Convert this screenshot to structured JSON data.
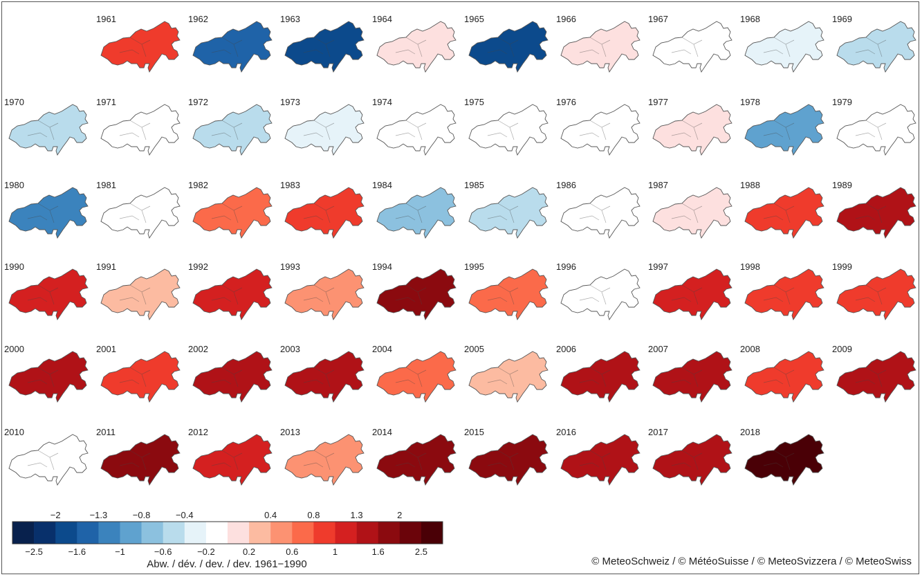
{
  "years": [
    {
      "year": "1961",
      "dev": 1.0
    },
    {
      "year": "1962",
      "dev": -1.6
    },
    {
      "year": "1963",
      "dev": -2.0
    },
    {
      "year": "1964",
      "dev": 0.3
    },
    {
      "year": "1965",
      "dev": -1.7
    },
    {
      "year": "1966",
      "dev": 0.2
    },
    {
      "year": "1967",
      "dev": 0.1
    },
    {
      "year": "1968",
      "dev": -0.3
    },
    {
      "year": "1969",
      "dev": -0.6
    },
    {
      "year": "1970",
      "dev": -0.6
    },
    {
      "year": "1971",
      "dev": 0.0
    },
    {
      "year": "1972",
      "dev": -0.6
    },
    {
      "year": "1973",
      "dev": -0.4
    },
    {
      "year": "1974",
      "dev": -0.2
    },
    {
      "year": "1975",
      "dev": 0.1
    },
    {
      "year": "1976",
      "dev": 0.1
    },
    {
      "year": "1977",
      "dev": 0.2
    },
    {
      "year": "1978",
      "dev": -0.9
    },
    {
      "year": "1979",
      "dev": -0.2
    },
    {
      "year": "1980",
      "dev": -1.1
    },
    {
      "year": "1981",
      "dev": -0.2
    },
    {
      "year": "1982",
      "dev": 0.8
    },
    {
      "year": "1983",
      "dev": 1.1
    },
    {
      "year": "1984",
      "dev": -0.8
    },
    {
      "year": "1985",
      "dev": -0.5
    },
    {
      "year": "1986",
      "dev": 0.1
    },
    {
      "year": "1987",
      "dev": 0.2
    },
    {
      "year": "1988",
      "dev": 1.1
    },
    {
      "year": "1989",
      "dev": 1.6
    },
    {
      "year": "1990",
      "dev": 1.3
    },
    {
      "year": "1991",
      "dev": 0.4
    },
    {
      "year": "1992",
      "dev": 1.3
    },
    {
      "year": "1993",
      "dev": 0.7
    },
    {
      "year": "1994",
      "dev": 2.3
    },
    {
      "year": "1995",
      "dev": 0.8
    },
    {
      "year": "1996",
      "dev": 0.0
    },
    {
      "year": "1997",
      "dev": 1.4
    },
    {
      "year": "1998",
      "dev": 1.1
    },
    {
      "year": "1999",
      "dev": 1.1
    },
    {
      "year": "2000",
      "dev": 1.8
    },
    {
      "year": "2001",
      "dev": 1.1
    },
    {
      "year": "2002",
      "dev": 1.7
    },
    {
      "year": "2003",
      "dev": 1.9
    },
    {
      "year": "2004",
      "dev": 0.9
    },
    {
      "year": "2005",
      "dev": 0.4
    },
    {
      "year": "2006",
      "dev": 1.7
    },
    {
      "year": "2007",
      "dev": 1.8
    },
    {
      "year": "2008",
      "dev": 1.1
    },
    {
      "year": "2009",
      "dev": 1.6
    },
    {
      "year": "2010",
      "dev": 0.1
    },
    {
      "year": "2011",
      "dev": 2.4
    },
    {
      "year": "2012",
      "dev": 1.4
    },
    {
      "year": "2013",
      "dev": 0.7
    },
    {
      "year": "2014",
      "dev": 2.3
    },
    {
      "year": "2015",
      "dev": 2.3
    },
    {
      "year": "2016",
      "dev": 1.7
    },
    {
      "year": "2017",
      "dev": 1.8
    },
    {
      "year": "2018",
      "dev": 2.5
    }
  ],
  "legend": {
    "colors": [
      "#08214d",
      "#08306b",
      "#0c4a8c",
      "#1f63a8",
      "#3b83bd",
      "#5fa2cf",
      "#8cc1df",
      "#b9dcec",
      "#e6f3f9",
      "#ffffff",
      "#fde0df",
      "#fcbba1",
      "#fc9272",
      "#fb6a4a",
      "#ef3b2c",
      "#d42020",
      "#b01217",
      "#8b0a0f",
      "#6b040a",
      "#4a0006"
    ],
    "top_ticks": [
      "−2",
      "−1.3",
      "−0.8",
      "−0.4",
      "0.4",
      "0.8",
      "1.3",
      "2"
    ],
    "bottom_ticks": [
      "−2.5",
      "−1.6",
      "−1",
      "−0.6",
      "−0.2",
      "0.2",
      "0.6",
      "1",
      "1.6",
      "2.5"
    ],
    "caption": "Abw. / dév. / dev. / dev. 1961−1990"
  },
  "copyright": "© MeteoSchweiz / © MétéoSuisse / © MeteoSvizzera / © MeteoSwiss"
}
